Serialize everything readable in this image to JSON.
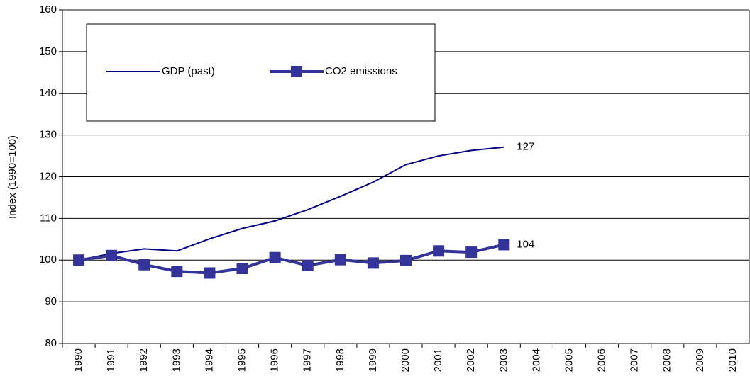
{
  "chart_data": {
    "type": "line",
    "ylabel": "Index (1990=100)",
    "categories": [
      "1990",
      "1991",
      "1992",
      "1993",
      "1994",
      "1995",
      "1996",
      "1997",
      "1998",
      "1999",
      "2000",
      "2001",
      "2002",
      "2003",
      "2004",
      "2005",
      "2006",
      "2007",
      "2008",
      "2009",
      "2010"
    ],
    "series": [
      {
        "name": "GDP (past)",
        "color": "#000080",
        "marker": false,
        "values": [
          100,
          101.6,
          102.7,
          102.2,
          105.1,
          107.6,
          109.4,
          112.1,
          115.3,
          118.7,
          122.9,
          125,
          126.3,
          127.1,
          null,
          null,
          null,
          null,
          null,
          null,
          null
        ],
        "value_labels": [
          null,
          null,
          null,
          null,
          null,
          null,
          null,
          null,
          null,
          null,
          null,
          null,
          null,
          "127",
          null,
          null,
          null,
          null,
          null,
          null,
          null
        ]
      },
      {
        "name": "CO2 emissions",
        "color": "#333399",
        "marker": true,
        "values": [
          100,
          101.1,
          98.9,
          97.3,
          96.9,
          98,
          100.6,
          98.7,
          100.1,
          99.3,
          99.9,
          102.2,
          101.9,
          103.7,
          null,
          null,
          null,
          null,
          null,
          null,
          null
        ],
        "value_labels": [
          null,
          null,
          null,
          null,
          null,
          null,
          null,
          null,
          null,
          null,
          null,
          null,
          null,
          "104",
          null,
          null,
          null,
          null,
          null,
          null,
          null
        ]
      }
    ],
    "ylim": [
      80,
      160
    ],
    "yticks": [
      80,
      90,
      100,
      110,
      120,
      130,
      140,
      150,
      160
    ],
    "grid": true,
    "legend": "top-left"
  }
}
